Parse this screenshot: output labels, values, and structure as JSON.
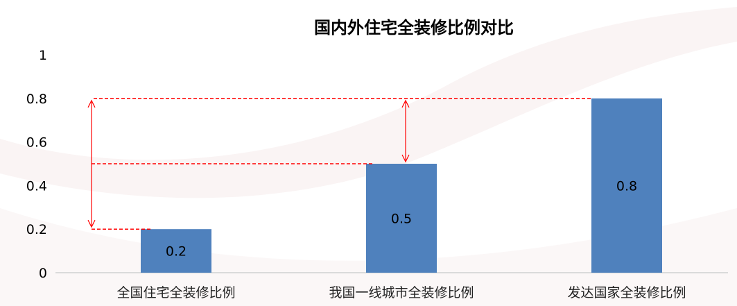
{
  "chart_data": {
    "type": "bar",
    "title": "国内外住宅全装修比例对比",
    "categories": [
      "全国住宅全装修比例",
      "我国一线城市全装修比例",
      "发达国家全装修比例"
    ],
    "values": [
      0.2,
      0.5,
      0.8
    ],
    "data_labels": [
      "0.2",
      "0.5",
      "0.8"
    ],
    "ylim": [
      0,
      1
    ],
    "yticks": [
      "0",
      "0.2",
      "0.4",
      "0.6",
      "0.8",
      "1"
    ],
    "xlabel": "",
    "ylabel": "",
    "grid": false,
    "legend": "none",
    "bar_color": "#4f81bd",
    "annotation_color": "#ff0000",
    "annotations": [
      {
        "type": "gap-arrow",
        "from": 0.2,
        "to": 0.8
      },
      {
        "type": "gap-arrow",
        "from": 0.5,
        "to": 0.8
      }
    ]
  }
}
